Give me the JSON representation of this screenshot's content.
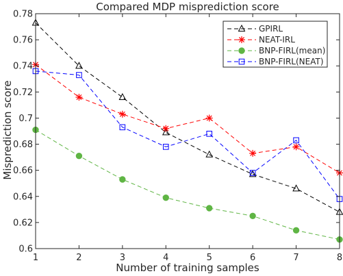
{
  "chart_data": {
    "type": "line",
    "title": "Compared MDP misprediction score",
    "xlabel": "Number of training samples",
    "ylabel": "Misprediction score",
    "xlim": [
      1,
      8
    ],
    "ylim": [
      0.6,
      0.78
    ],
    "x": [
      1,
      2,
      3,
      4,
      5,
      6,
      7,
      8
    ],
    "xticks": [
      "1",
      "2",
      "3",
      "4",
      "5",
      "6",
      "7",
      "8"
    ],
    "yticks": [
      "0.6",
      "0.62",
      "0.64",
      "0.66",
      "0.68",
      "0.7",
      "0.72",
      "0.74",
      "0.76",
      "0.78"
    ],
    "grid": false,
    "legend_position": "top-right",
    "series": [
      {
        "name": "GPIRL",
        "color": "#000000",
        "marker": "triangle",
        "values": [
          0.773,
          0.74,
          0.716,
          0.689,
          0.672,
          0.657,
          0.646,
          0.628
        ]
      },
      {
        "name": "NEAT-IRL",
        "color": "#ff0000",
        "marker": "asterisk",
        "values": [
          0.741,
          0.716,
          0.703,
          0.692,
          0.7,
          0.673,
          0.678,
          0.658
        ]
      },
      {
        "name": "BNP-FIRL(mean)",
        "color": "#5fb544",
        "marker": "circle",
        "values": [
          0.691,
          0.671,
          0.653,
          0.639,
          0.631,
          0.625,
          0.614,
          0.607
        ]
      },
      {
        "name": "BNP-FIRL(NEAT)",
        "color": "#0000ff",
        "marker": "square",
        "values": [
          0.736,
          0.733,
          0.693,
          0.678,
          0.688,
          0.658,
          0.683,
          0.638
        ]
      }
    ]
  }
}
